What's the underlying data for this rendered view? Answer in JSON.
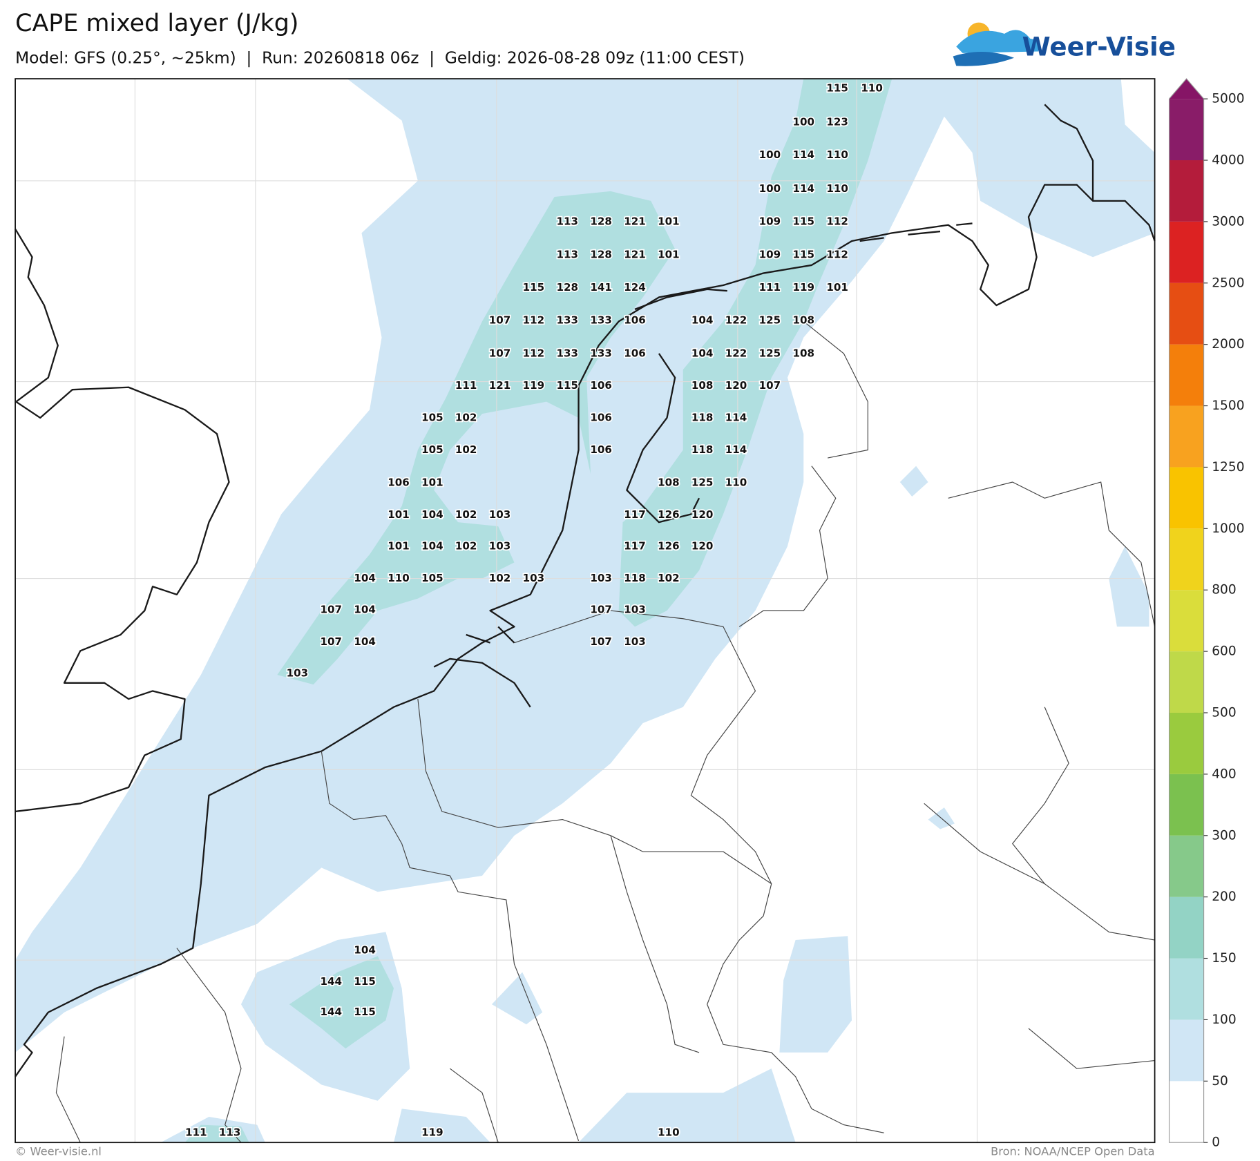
{
  "header": {
    "title": "CAPE mixed layer (J/kg)",
    "subtitle": "Model: GFS (0.25°, ~25km)  |  Run: 20260818 06z  |  Geldig: 2026-08-28 09z (11:00 CEST)",
    "logo": "Weer-Visie"
  },
  "map_labels": [
    [
      115,
      110
    ],
    [
      100,
      123
    ],
    [
      100,
      114,
      110
    ],
    [
      100,
      114,
      110
    ],
    [
      113,
      128,
      121,
      101,
      109,
      115,
      112
    ],
    [
      113,
      128,
      121,
      101,
      109,
      115,
      112
    ],
    [
      115,
      128,
      141,
      124,
      111,
      119,
      101
    ],
    [
      107,
      112,
      133,
      133,
      106,
      104,
      122,
      125,
      108
    ],
    [
      107,
      112,
      133,
      133,
      106,
      104,
      122,
      125,
      108
    ],
    [
      111,
      121,
      119,
      115,
      106,
      108,
      120,
      107
    ],
    [
      105,
      102,
      106,
      118,
      114
    ],
    [
      105,
      102,
      106,
      118,
      114
    ],
    [
      106,
      101,
      108,
      125,
      110
    ],
    [
      101,
      104,
      102,
      103,
      117,
      126,
      120
    ],
    [
      101,
      104,
      102,
      103,
      117,
      126,
      120
    ],
    [
      104,
      110,
      105,
      102,
      103,
      103,
      118,
      102
    ],
    [
      107,
      104,
      107,
      103
    ],
    [
      107,
      104,
      107,
      103
    ],
    [
      103
    ],
    [
      104
    ],
    [
      144,
      115
    ],
    [
      144,
      115
    ],
    [
      111,
      113,
      119,
      110
    ]
  ],
  "colorbar": {
    "levels": [
      0,
      50,
      100,
      150,
      200,
      300,
      400,
      500,
      600,
      800,
      1000,
      1250,
      1500,
      2000,
      2500,
      3000,
      4000,
      5000
    ],
    "colors": [
      "#ffffff",
      "#d0e6f5",
      "#b0dfe0",
      "#93d3c5",
      "#86c98a",
      "#7bc14f",
      "#9acb3e",
      "#bfd949",
      "#dadd3b",
      "#f0d31c",
      "#f9c300",
      "#f8a21f",
      "#f47f0b",
      "#e64e13",
      "#dc2222",
      "#b41c3b",
      "#891c68"
    ],
    "extend_color": "#861566"
  },
  "footer": {
    "left": "© Weer-visie.nl",
    "right": "Bron: NOAA/NCEP Open Data"
  }
}
